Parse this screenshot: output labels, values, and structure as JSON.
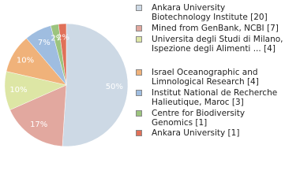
{
  "chart_data": {
    "type": "pie",
    "categories": [
      "Ankara University Biotechnology Institute [20]",
      "Mined from GenBank, NCBI [7]",
      "Universita degli Studi di Milano, Ispezione degli Alimenti ... [4]",
      "Israel Oceanographic and Limnological Research [4]",
      "Institut National de Recherche Halieutique, Maroc [3]",
      "Centre for Biodiversity Genomics [1]",
      "Ankara University [1]"
    ],
    "values": [
      50,
      17,
      10,
      10,
      7,
      2,
      2
    ],
    "value_labels": [
      "50%",
      "17%",
      "10%",
      "10%",
      "7%",
      "2%",
      "2%"
    ],
    "colors": [
      "#cdd9e5",
      "#e2a89f",
      "#dde6a5",
      "#f0b27a",
      "#9fbde0",
      "#9cc47e",
      "#e07058"
    ]
  }
}
